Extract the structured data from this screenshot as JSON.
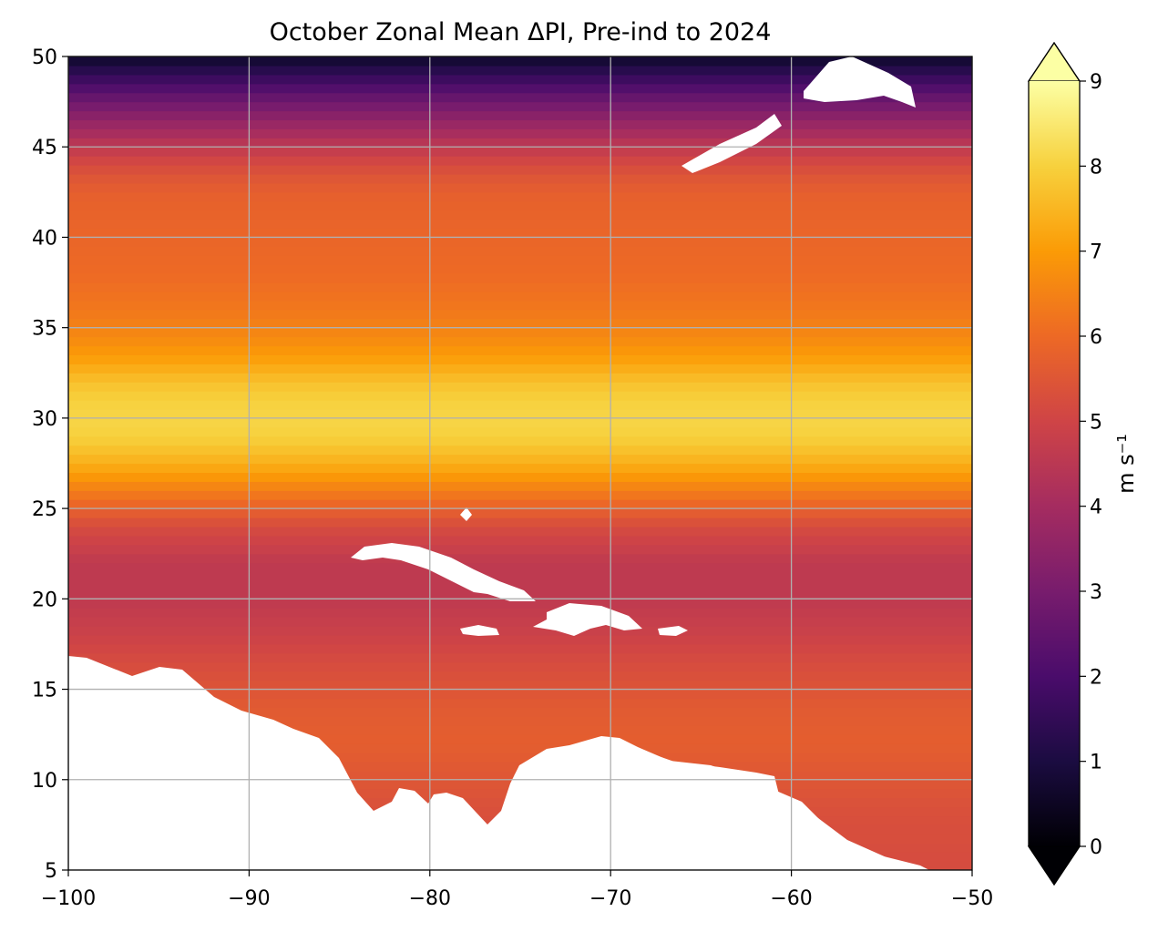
{
  "title": "October Zonal Mean ΔPI, Pre-ind to 2024",
  "colorbar": {
    "label": "m s⁻¹",
    "ticks": [
      "0",
      "1",
      "2",
      "3",
      "4",
      "5",
      "6",
      "7",
      "8",
      "9"
    ],
    "min": 0,
    "max": 9,
    "colormap": "inferno",
    "extend": "both",
    "stops": [
      "#000004",
      "#1b0c41",
      "#4a0c6b",
      "#781c6d",
      "#a52c60",
      "#cf4446",
      "#ed6925",
      "#fb9b06",
      "#f7d13d",
      "#fcffa4"
    ]
  },
  "chart_data": {
    "type": "heatmap",
    "title": "October Zonal Mean ΔPI, Pre-ind to 2024",
    "xlim": [
      -100,
      -50
    ],
    "ylim": [
      5,
      50
    ],
    "xticks": [
      "−100",
      "−90",
      "−80",
      "−70",
      "−60",
      "−50"
    ],
    "yticks": [
      "5",
      "10",
      "15",
      "20",
      "25",
      "30",
      "35",
      "40",
      "45",
      "50"
    ],
    "grid": true,
    "zonal_profile": {
      "lat": [
        5,
        8,
        10,
        12,
        14,
        16,
        18,
        20,
        22,
        24,
        25,
        26,
        27,
        28,
        29,
        30,
        31,
        32,
        33,
        34,
        35,
        36,
        38,
        40,
        42,
        43,
        44,
        45,
        46,
        47,
        48,
        49,
        50
      ],
      "value": [
        5.2,
        5.3,
        5.5,
        5.7,
        5.6,
        5.3,
        4.9,
        4.6,
        4.6,
        5.2,
        5.8,
        6.4,
        7.1,
        7.6,
        8.0,
        8.1,
        8.0,
        7.7,
        7.2,
        6.8,
        6.5,
        6.3,
        6.0,
        5.9,
        5.8,
        5.6,
        5.2,
        4.6,
        3.9,
        3.2,
        2.4,
        1.5,
        0.6
      ]
    }
  }
}
